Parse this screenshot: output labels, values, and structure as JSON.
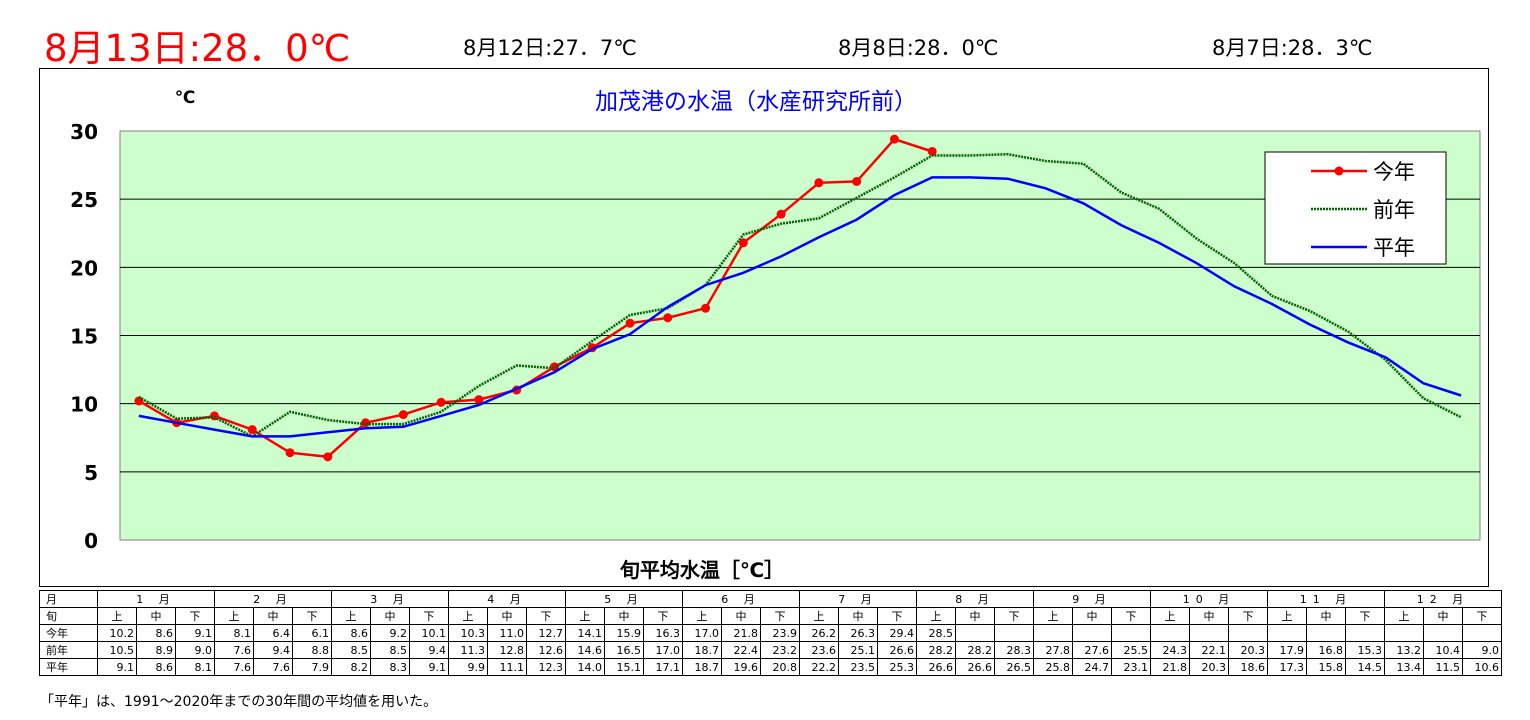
{
  "header": {
    "main": "8月13日:28．0℃",
    "recent": [
      "8月12日:27．7℃",
      "8月8日:28．0℃",
      "8月7日:28．3℃"
    ]
  },
  "note": "「平年」は、1991～2020年までの30年間の平均値を用いた。",
  "colors": {
    "today": "#ff0000",
    "lastyear": "#006400",
    "normal": "#0000ff",
    "plot_bg": "#ccffcc",
    "title": "#0000ff"
  },
  "table": {
    "month_label": "月",
    "jun_label": "旬",
    "months": [
      "1 月",
      "2 月",
      "3 月",
      "4 月",
      "5 月",
      "6 月",
      "7 月",
      "8 月",
      "9 月",
      "10 月",
      "11 月",
      "12 月"
    ],
    "juns": [
      "上",
      "中",
      "下"
    ],
    "rows": [
      {
        "label": "今年",
        "values": [
          "10.2",
          "8.6",
          "9.1",
          "8.1",
          "6.4",
          "6.1",
          "8.6",
          "9.2",
          "10.1",
          "10.3",
          "11.0",
          "12.7",
          "14.1",
          "15.9",
          "16.3",
          "17.0",
          "21.8",
          "23.9",
          "26.2",
          "26.3",
          "29.4",
          "28.5",
          "",
          "",
          "",
          "",
          "",
          "",
          "",
          "",
          "",
          "",
          "",
          "",
          "",
          ""
        ]
      },
      {
        "label": "前年",
        "values": [
          "10.5",
          "8.9",
          "9.0",
          "7.6",
          "9.4",
          "8.8",
          "8.5",
          "8.5",
          "9.4",
          "11.3",
          "12.8",
          "12.6",
          "14.6",
          "16.5",
          "17.0",
          "18.7",
          "22.4",
          "23.2",
          "23.6",
          "25.1",
          "26.6",
          "28.2",
          "28.2",
          "28.3",
          "27.8",
          "27.6",
          "25.5",
          "24.3",
          "22.1",
          "20.3",
          "17.9",
          "16.8",
          "15.3",
          "13.2",
          "10.4",
          "9.0"
        ]
      },
      {
        "label": "平年",
        "values": [
          "9.1",
          "8.6",
          "8.1",
          "7.6",
          "7.6",
          "7.9",
          "8.2",
          "8.3",
          "9.1",
          "9.9",
          "11.1",
          "12.3",
          "14.0",
          "15.1",
          "17.1",
          "18.7",
          "19.6",
          "20.8",
          "22.2",
          "23.5",
          "25.3",
          "26.6",
          "26.6",
          "26.5",
          "25.8",
          "24.7",
          "23.1",
          "21.8",
          "20.3",
          "18.6",
          "17.3",
          "15.8",
          "14.5",
          "13.4",
          "11.5",
          "10.6"
        ]
      }
    ]
  },
  "chart_data": {
    "type": "line",
    "title": "加茂港の水温（水産研究所前）",
    "xlabel": "旬平均水温［℃］",
    "ylabel": "℃",
    "ylim": [
      0,
      30
    ],
    "yticks": [
      "0",
      "5",
      "10",
      "15",
      "20",
      "25",
      "30"
    ],
    "grid": true,
    "legend_position": "top-right",
    "x_count": 36,
    "series": [
      {
        "name": "今年",
        "color": "#ff0000",
        "markers": true,
        "style": "solid",
        "values": [
          10.2,
          8.6,
          9.1,
          8.1,
          6.4,
          6.1,
          8.6,
          9.2,
          10.1,
          10.3,
          11.0,
          12.7,
          14.1,
          15.9,
          16.3,
          17.0,
          21.8,
          23.9,
          26.2,
          26.3,
          29.4,
          28.5
        ]
      },
      {
        "name": "前年",
        "color": "#006400",
        "markers": false,
        "style": "dotted",
        "values": [
          10.5,
          8.9,
          9.0,
          7.6,
          9.4,
          8.8,
          8.5,
          8.5,
          9.4,
          11.3,
          12.8,
          12.6,
          14.6,
          16.5,
          17.0,
          18.7,
          22.4,
          23.2,
          23.6,
          25.1,
          26.6,
          28.2,
          28.2,
          28.3,
          27.8,
          27.6,
          25.5,
          24.3,
          22.1,
          20.3,
          17.9,
          16.8,
          15.3,
          13.2,
          10.4,
          9.0
        ]
      },
      {
        "name": "平年",
        "color": "#0000ff",
        "markers": false,
        "style": "solid",
        "values": [
          9.1,
          8.6,
          8.1,
          7.6,
          7.6,
          7.9,
          8.2,
          8.3,
          9.1,
          9.9,
          11.1,
          12.3,
          14.0,
          15.1,
          17.1,
          18.7,
          19.6,
          20.8,
          22.2,
          23.5,
          25.3,
          26.6,
          26.6,
          26.5,
          25.8,
          24.7,
          23.1,
          21.8,
          20.3,
          18.6,
          17.3,
          15.8,
          14.5,
          13.4,
          11.5,
          10.6
        ]
      }
    ]
  }
}
